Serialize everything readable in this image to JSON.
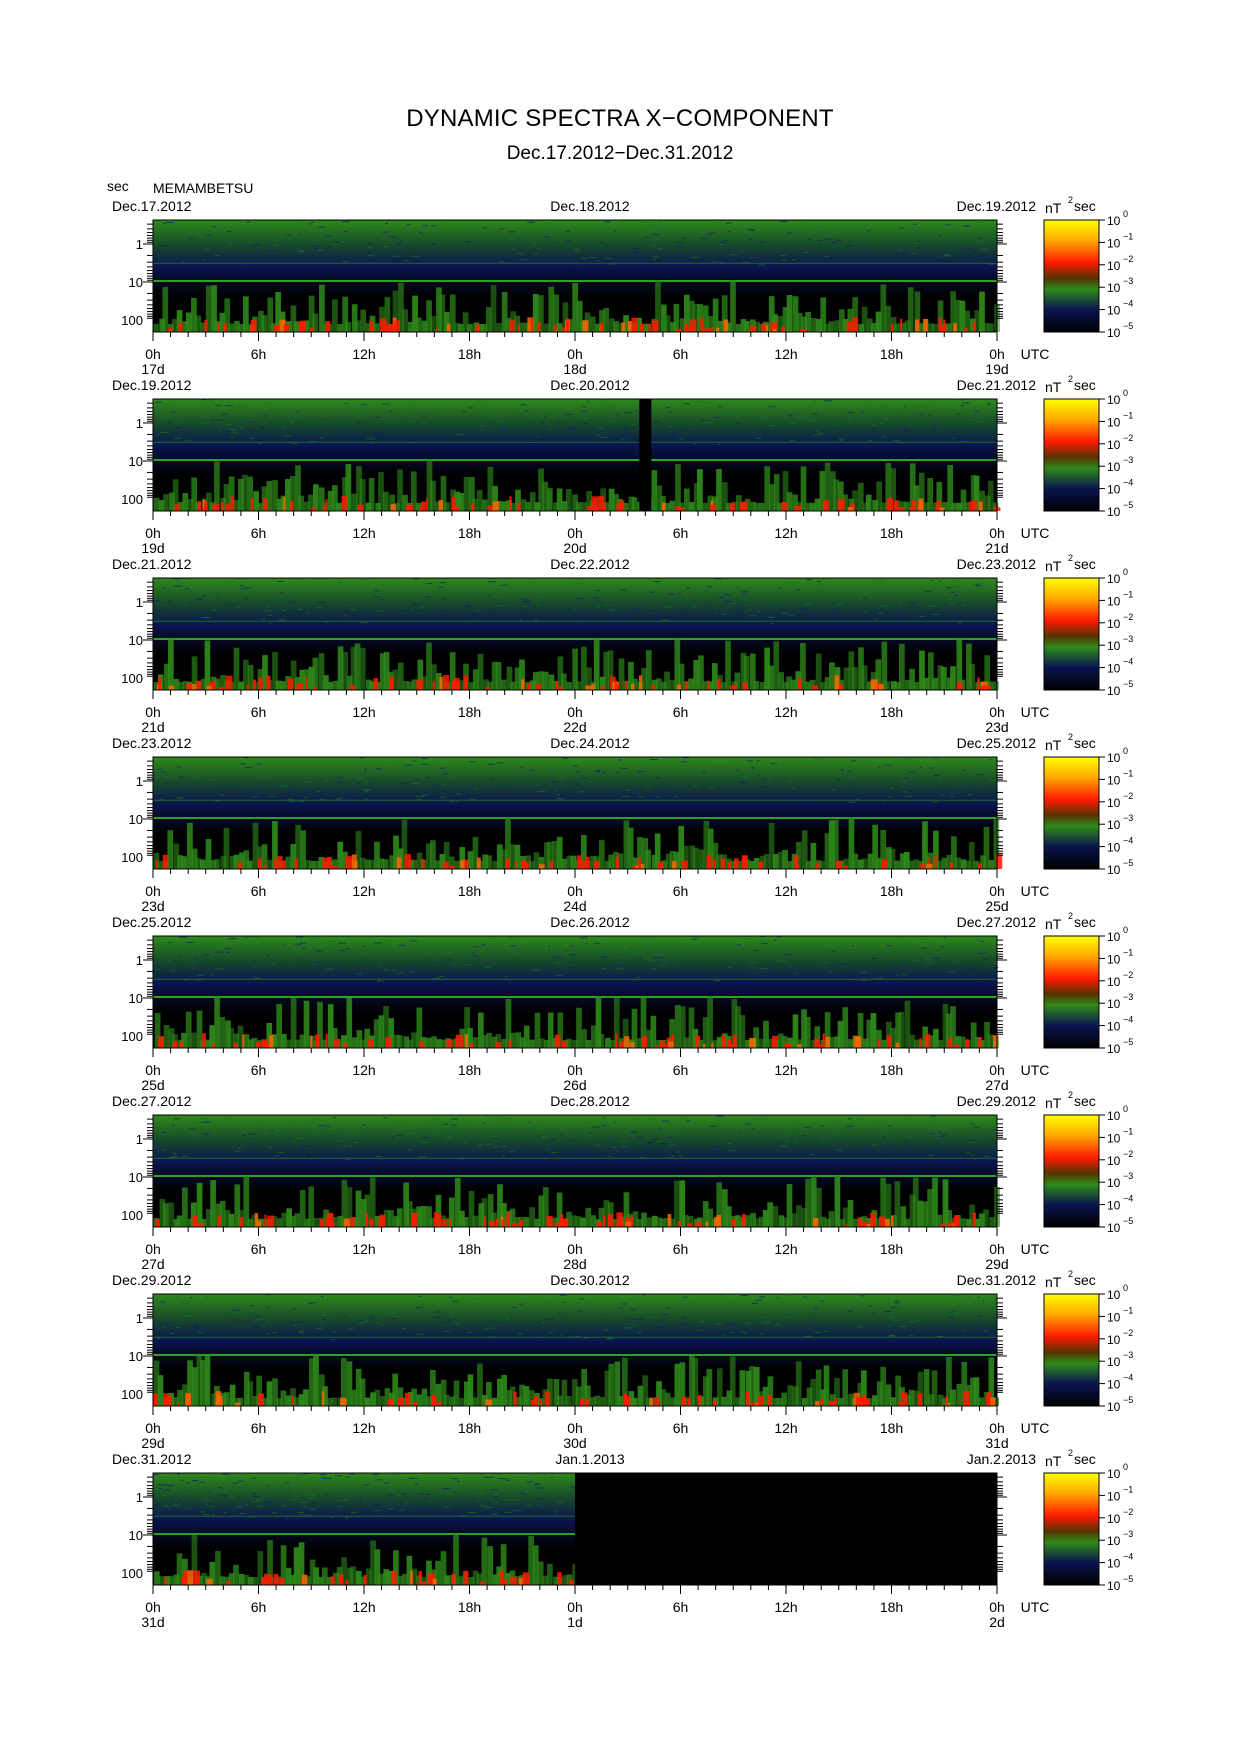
{
  "title": "DYNAMIC SPECTRA X−COMPONENT",
  "subtitle": "Dec.17.2012−Dec.31.2012",
  "y_unit_label": "sec",
  "station": "MEMAMBETSU",
  "colorbar_unit": "nT",
  "colorbar_unit_exp": "2",
  "colorbar_unit_suffix": "sec",
  "colorbar_ticks": [
    "10",
    "10",
    "10",
    "10",
    "10",
    "10"
  ],
  "colorbar_tick_exps": [
    "0",
    "−1",
    "−2",
    "−3",
    "−4",
    "−5"
  ],
  "colors": {
    "low": "#000000",
    "navy": "#0a1450",
    "green": "#2e8a1a",
    "red": "#ff1a00",
    "high": "#ffff00"
  },
  "chart_data": {
    "type": "heatmap",
    "y_axis": {
      "scale": "log",
      "tick_labels": [
        "1",
        "10",
        "100"
      ],
      "label": "sec"
    },
    "x_tick_labels": [
      "0h",
      "6h",
      "12h",
      "18h",
      "0h",
      "6h",
      "12h",
      "18h",
      "0h"
    ],
    "x_unit": "UTC",
    "colorbar": {
      "range": [
        "10^-5",
        "10^0"
      ],
      "unit": "nT^2 sec"
    },
    "panels": [
      {
        "left_date": "Dec.17.2012",
        "mid_date": "Dec.18.2012",
        "right_date": "Dec.19.2012",
        "day_labels": [
          "17d",
          "18d",
          "19d"
        ],
        "data_fraction": 1.0,
        "gap_at_hours": []
      },
      {
        "left_date": "Dec.19.2012",
        "mid_date": "Dec.20.2012",
        "right_date": "Dec.21.2012",
        "day_labels": [
          "19d",
          "20d",
          "21d"
        ],
        "data_fraction": 1.0,
        "gap_at_hours": [
          28
        ]
      },
      {
        "left_date": "Dec.21.2012",
        "mid_date": "Dec.22.2012",
        "right_date": "Dec.23.2012",
        "day_labels": [
          "21d",
          "22d",
          "23d"
        ],
        "data_fraction": 1.0,
        "gap_at_hours": []
      },
      {
        "left_date": "Dec.23.2012",
        "mid_date": "Dec.24.2012",
        "right_date": "Dec.25.2012",
        "day_labels": [
          "23d",
          "24d",
          "25d"
        ],
        "data_fraction": 1.0,
        "gap_at_hours": []
      },
      {
        "left_date": "Dec.25.2012",
        "mid_date": "Dec.26.2012",
        "right_date": "Dec.27.2012",
        "day_labels": [
          "25d",
          "26d",
          "27d"
        ],
        "data_fraction": 1.0,
        "gap_at_hours": []
      },
      {
        "left_date": "Dec.27.2012",
        "mid_date": "Dec.28.2012",
        "right_date": "Dec.29.2012",
        "day_labels": [
          "27d",
          "28d",
          "29d"
        ],
        "data_fraction": 1.0,
        "gap_at_hours": []
      },
      {
        "left_date": "Dec.29.2012",
        "mid_date": "Dec.30.2012",
        "right_date": "Dec.31.2012",
        "day_labels": [
          "29d",
          "30d",
          "31d"
        ],
        "data_fraction": 1.0,
        "gap_at_hours": []
      },
      {
        "left_date": "Dec.31.2012",
        "mid_date": "Jan.1.2013",
        "right_date": "Jan.2.2013",
        "day_labels": [
          "31d",
          "1d",
          "2d"
        ],
        "data_fraction": 0.5,
        "gap_at_hours": []
      }
    ]
  }
}
